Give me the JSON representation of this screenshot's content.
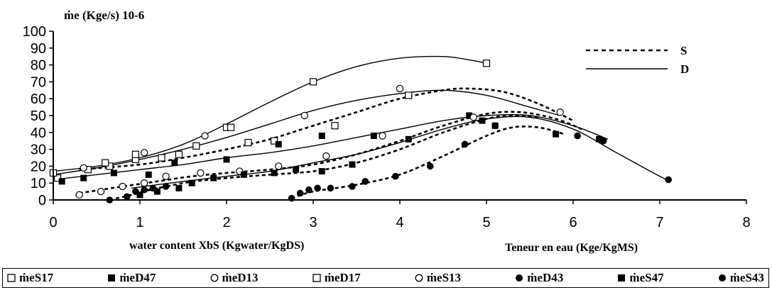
{
  "chart_data": {
    "type": "scatter",
    "title": "ṁe (Kge/s) 10-6",
    "xlabel": "water content XbS (Kgwater/KgDS)",
    "xlabel2": "Teneur en eau  (Kge/KgMS)",
    "ylabel": "ṁe (Kge/s) 10-6",
    "xlim": [
      0,
      8
    ],
    "ylim": [
      0,
      100
    ],
    "x_ticks": [
      "0",
      "1",
      "2",
      "3",
      "4",
      "5",
      "6",
      "7",
      "8"
    ],
    "y_ticks": [
      "0",
      "10",
      "20",
      "30",
      "40",
      "50",
      "60",
      "70",
      "80",
      "90",
      "100"
    ],
    "grid": false,
    "series": [
      {
        "name": "ṁeS17",
        "marker": "square-open",
        "x": [
          0.05,
          0.4,
          0.65,
          0.95,
          1.25,
          1.45,
          2.0,
          2.25,
          2.55,
          3.0,
          3.25,
          4.1,
          5.0
        ],
        "y": [
          13,
          18,
          20,
          24,
          25,
          27,
          43,
          34,
          35,
          70,
          44,
          62,
          81
        ]
      },
      {
        "name": "ṁeD47",
        "marker": "square-filled",
        "x": [
          0.1,
          0.35,
          0.7,
          1.1,
          1.4,
          2.0,
          2.6,
          3.1,
          3.7,
          4.1,
          4.8,
          4.95,
          5.1,
          5.8,
          6.3
        ],
        "y": [
          11,
          13,
          16,
          15,
          22,
          24,
          33,
          38,
          38,
          36,
          50,
          47,
          44,
          39,
          36
        ]
      },
      {
        "name": "ṁeD13",
        "marker": "circle-open",
        "x": [
          0.35,
          1.05,
          1.75,
          2.9,
          4.0,
          5.85
        ],
        "y": [
          19,
          28,
          38,
          50,
          66,
          52
        ]
      },
      {
        "name": "ṁeD17",
        "marker": "square-open",
        "x": [
          0.0,
          0.6,
          0.95,
          1.65,
          2.05
        ],
        "y": [
          16,
          22,
          27,
          32,
          43
        ]
      },
      {
        "name": "ṁeS13",
        "marker": "circle-open",
        "x": [
          0.3,
          0.55,
          0.8,
          1.05,
          1.3,
          1.7,
          2.15,
          2.6,
          3.15,
          3.8,
          4.85
        ],
        "y": [
          3,
          5,
          8,
          10,
          14,
          16,
          17,
          20,
          26,
          38,
          49
        ]
      },
      {
        "name": "ṁeD43",
        "marker": "circle-filled",
        "x": [
          2.75,
          2.85,
          2.95,
          3.05,
          3.2,
          3.45,
          3.6,
          3.95,
          4.35,
          4.75,
          5.1,
          6.05,
          6.35,
          7.1
        ],
        "y": [
          1,
          4,
          6,
          7,
          7,
          8,
          11,
          14,
          20,
          33,
          44,
          38,
          35,
          12
        ]
      },
      {
        "name": "ṁeS47",
        "marker": "square-filled",
        "x": [
          1.0,
          1.2,
          1.45,
          1.6,
          1.85,
          2.2,
          2.55,
          2.8,
          3.1,
          3.45
        ],
        "y": [
          3,
          5,
          7,
          10,
          13,
          15,
          16,
          18,
          17,
          21
        ]
      },
      {
        "name": "ṁeS43",
        "marker": "circle-filled",
        "x": [
          0.65,
          0.85,
          0.95,
          1.05,
          1.15,
          1.3
        ],
        "y": [
          0,
          2,
          5,
          6,
          7,
          8
        ]
      }
    ],
    "curves": [
      {
        "style": "solid",
        "x": [
          0,
          0.5,
          1,
          1.5,
          2,
          2.5,
          3,
          3.5,
          4,
          4.5,
          4.8,
          5.0
        ],
        "y": [
          17,
          20,
          25,
          33,
          45,
          58,
          70,
          79,
          84,
          85,
          83,
          81
        ]
      },
      {
        "style": "solid",
        "x": [
          0,
          0.5,
          1,
          1.5,
          2,
          2.5,
          3,
          3.5,
          4,
          4.5,
          5,
          5.5,
          5.85
        ],
        "y": [
          15,
          19,
          24,
          30,
          37,
          45,
          53,
          59,
          63,
          65,
          62,
          55,
          50
        ]
      },
      {
        "style": "dashed",
        "x": [
          0.3,
          1,
          1.5,
          2,
          2.5,
          3,
          3.5,
          4,
          4.5,
          4.8,
          5.2,
          5.6,
          6.0
        ],
        "y": [
          18,
          21,
          25,
          30,
          36,
          44,
          52,
          60,
          65,
          66,
          64,
          57,
          47
        ]
      },
      {
        "style": "solid",
        "x": [
          0,
          0.5,
          1,
          1.5,
          2,
          2.5,
          3,
          3.5,
          4,
          4.5,
          5,
          5.5,
          6,
          6.4
        ],
        "y": [
          12,
          15,
          18,
          21,
          25,
          28,
          32,
          37,
          42,
          47,
          50,
          50,
          44,
          36
        ]
      },
      {
        "style": "solid",
        "x": [
          0.9,
          1.5,
          2,
          2.5,
          3,
          3.5,
          4,
          4.5,
          5,
          5.5,
          6,
          6.5,
          7,
          7.1
        ],
        "y": [
          7,
          11,
          14,
          17,
          22,
          27,
          34,
          42,
          48,
          49,
          42,
          28,
          14,
          12
        ]
      },
      {
        "style": "dashed",
        "x": [
          0.3,
          0.8,
          1.2,
          1.6,
          2,
          2.5,
          3,
          3.5,
          4,
          4.5,
          5,
          5.4,
          5.8,
          6.1
        ],
        "y": [
          4,
          8,
          11,
          14,
          16,
          18,
          21,
          27,
          35,
          44,
          51,
          52,
          48,
          42
        ]
      },
      {
        "style": "dashed",
        "x": [
          0.95,
          1.5,
          2,
          2.5,
          3,
          3.5,
          4,
          4.5,
          5,
          5.3,
          5.6
        ],
        "y": [
          4,
          10,
          13,
          15,
          17,
          22,
          30,
          40,
          48,
          50,
          49
        ]
      },
      {
        "style": "dashed",
        "x": [
          0.65,
          0.9,
          1.1,
          1.3
        ],
        "y": [
          0,
          3,
          6,
          8
        ]
      },
      {
        "style": "dashed",
        "x": [
          2.75,
          3,
          3.5,
          4,
          4.5,
          5,
          5.3,
          5.6,
          5.9
        ],
        "y": [
          1,
          5,
          9,
          15,
          26,
          38,
          43,
          43,
          39
        ]
      }
    ],
    "line_legend": [
      {
        "style": "dashed",
        "label": "S"
      },
      {
        "style": "solid",
        "label": "D"
      }
    ]
  }
}
